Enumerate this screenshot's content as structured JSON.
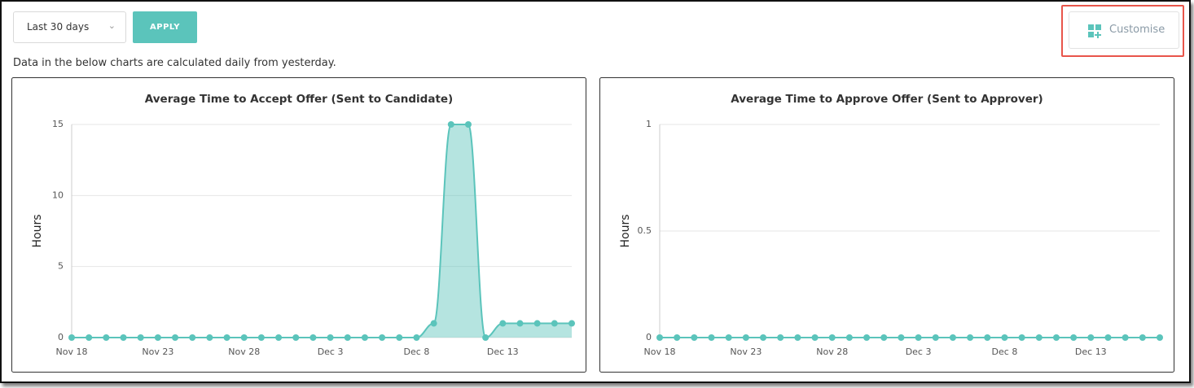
{
  "controls": {
    "range": "Last 30 days",
    "apply": "APPLY",
    "customise": "Customise"
  },
  "note": "Data in the below charts are calculated daily from yesterday.",
  "chart_data": [
    {
      "type": "area",
      "title": "Average Time to Accept Offer (Sent to Candidate)",
      "y_label": "Hours",
      "categories": [
        "Nov 18",
        null,
        null,
        null,
        null,
        "Nov 23",
        null,
        null,
        null,
        null,
        "Nov 28",
        null,
        null,
        null,
        null,
        "Dec 3",
        null,
        null,
        null,
        null,
        "Dec 8",
        null,
        null,
        null,
        null,
        "Dec 13",
        null,
        null,
        null,
        null
      ],
      "values": [
        0,
        0,
        0,
        0,
        0,
        0,
        0,
        0,
        0,
        0,
        0,
        0,
        0,
        0,
        0,
        0,
        0,
        0,
        0,
        0,
        0,
        1,
        15,
        15,
        0,
        1,
        1,
        1,
        1,
        1
      ],
      "color": "#5bc4bb",
      "ylim": [
        0,
        15
      ],
      "yticks": [
        0,
        5,
        10,
        15
      ],
      "grid": true
    },
    {
      "type": "area",
      "title": "Average Time to Approve Offer (Sent to Approver)",
      "y_label": "Hours",
      "categories": [
        "Nov 18",
        null,
        null,
        null,
        null,
        "Nov 23",
        null,
        null,
        null,
        null,
        "Nov 28",
        null,
        null,
        null,
        null,
        "Dec 3",
        null,
        null,
        null,
        null,
        "Dec 8",
        null,
        null,
        null,
        null,
        "Dec 13",
        null,
        null,
        null,
        null
      ],
      "values": [
        0,
        0,
        0,
        0,
        0,
        0,
        0,
        0,
        0,
        0,
        0,
        0,
        0,
        0,
        0,
        0,
        0,
        0,
        0,
        0,
        0,
        0,
        0,
        0,
        0,
        0,
        0,
        0,
        0,
        0
      ],
      "color": "#5bc4bb",
      "ylim": [
        0,
        1
      ],
      "yticks": [
        0,
        0.5,
        1
      ],
      "grid": true
    }
  ]
}
